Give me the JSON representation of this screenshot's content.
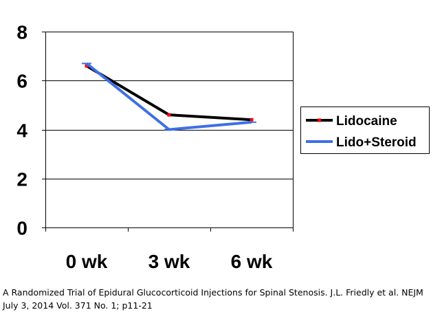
{
  "chart_data": {
    "type": "line",
    "categories": [
      "0 wk",
      "3 wk",
      "6 wk"
    ],
    "yticks": [
      "0",
      "2",
      "4",
      "6",
      "8"
    ],
    "ylim": [
      0,
      8
    ],
    "grid": true,
    "legend_position": "right",
    "series": [
      {
        "name": "Lidocaine",
        "values": [
          6.6,
          4.6,
          4.4
        ],
        "color": "#000000",
        "marker_color": "#ff0000"
      },
      {
        "name": "Lido+Steroid",
        "values": [
          6.7,
          4.0,
          4.3
        ],
        "color": "#3f6fe6"
      }
    ]
  },
  "caption": {
    "line1": "A Randomized Trial of Epidural Glucocorticoid Injections for Spinal Stenosis.  J.L. Friedly et al. NEJM",
    "line2": "July 3, 2014  Vol. 371 No. 1; p11-21"
  }
}
